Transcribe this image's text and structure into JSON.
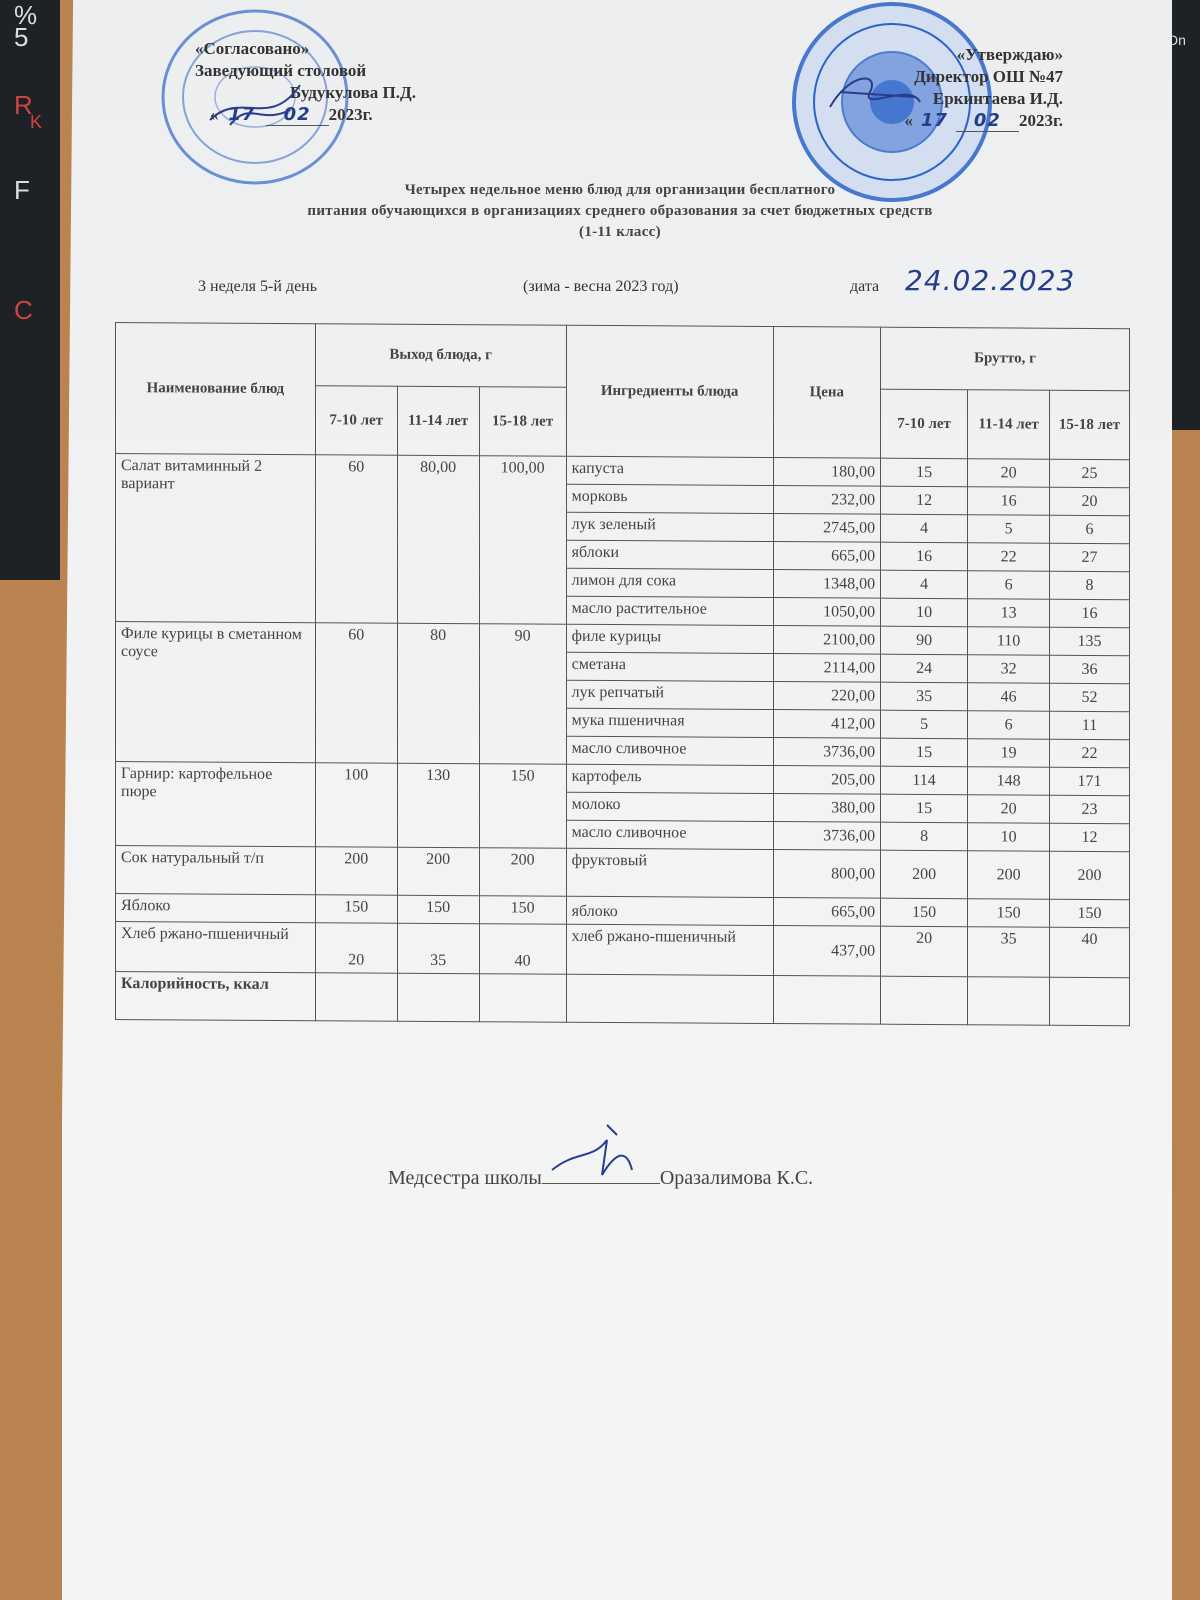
{
  "keyboard_keys": [
    "%",
    "5",
    "R",
    "K",
    "F",
    "C"
  ],
  "keyboard_right_key": "Dn",
  "approval_left": {
    "line1": "«Согласовано»",
    "line2": "Заведующий столовой",
    "line3": "Будукулова П.Д.",
    "date_prefix": "«",
    "day": "17",
    "month": "02",
    "year": "2023г."
  },
  "approval_right": {
    "line1": "«Утверждаю»",
    "line2": "Директор ОШ №47",
    "line3": "Еркинтаева И.Д.",
    "date_prefix": "«",
    "day": "17",
    "month": "02",
    "year": "2023г."
  },
  "stamp_left_text": "РЕСПУБЛИКА КАЗАХСТАН ГОРОД АЛМАТЫ · ИП БУДУКУЛОВА",
  "stamp_right_text": "АЛМАТЫ ҚАЛАСЫ · №47 ЖАЛПЫ БІЛІМ БЕРЕТІН МЕКТЕП",
  "stamp_color": "#2b63c9",
  "title": {
    "line1": "Четырех недельное меню блюд для организации бесплатного",
    "line2": "питания обучающихся в организациях среднего образования за счет бюджетных средств",
    "line3": "(1-11 класс)"
  },
  "meta": {
    "week_day": "3 неделя 5-й день",
    "season": "(зима - весна 2023 год)",
    "date_label": "дата",
    "date_value": "24.02.2023"
  },
  "table": {
    "headers": {
      "dish": "Наименование блюд",
      "yield": "Выход блюда, г",
      "ingredients": "Ингредиенты блюда",
      "price": "Цена",
      "brutto": "Брутто, г",
      "ages": [
        "7-10 лет",
        "11-14 лет",
        "15-18 лет"
      ]
    },
    "dishes": [
      {
        "name": "Салат витаминный 2 вариант",
        "yield": [
          "60",
          "80,00",
          "100,00"
        ],
        "ingredients": [
          {
            "name": "капуста",
            "price": "180,00",
            "brutto": [
              "15",
              "20",
              "25"
            ]
          },
          {
            "name": "морковь",
            "price": "232,00",
            "brutto": [
              "12",
              "16",
              "20"
            ]
          },
          {
            "name": "лук зеленый",
            "price": "2745,00",
            "brutto": [
              "4",
              "5",
              "6"
            ]
          },
          {
            "name": "яблоки",
            "price": "665,00",
            "brutto": [
              "16",
              "22",
              "27"
            ]
          },
          {
            "name": "лимон для сока",
            "price": "1348,00",
            "brutto": [
              "4",
              "6",
              "8"
            ]
          },
          {
            "name": "масло растительное",
            "price": "1050,00",
            "brutto": [
              "10",
              "13",
              "16"
            ]
          }
        ]
      },
      {
        "name": "Филе курицы в сметанном соусе",
        "yield": [
          "60",
          "80",
          "90"
        ],
        "ingredients": [
          {
            "name": "филе курицы",
            "price": "2100,00",
            "brutto": [
              "90",
              "110",
              "135"
            ]
          },
          {
            "name": "сметана",
            "price": "2114,00",
            "brutto": [
              "24",
              "32",
              "36"
            ]
          },
          {
            "name": "лук репчатый",
            "price": "220,00",
            "brutto": [
              "35",
              "46",
              "52"
            ]
          },
          {
            "name": "мука пшеничная",
            "price": "412,00",
            "brutto": [
              "5",
              "6",
              "11"
            ]
          },
          {
            "name": "масло сливочное",
            "price": "3736,00",
            "brutto": [
              "15",
              "19",
              "22"
            ]
          }
        ]
      },
      {
        "name": "Гарнир: картофельное пюре",
        "yield": [
          "100",
          "130",
          "150"
        ],
        "ingredients": [
          {
            "name": "картофель",
            "price": "205,00",
            "brutto": [
              "114",
              "148",
              "171"
            ]
          },
          {
            "name": "молоко",
            "price": "380,00",
            "brutto": [
              "15",
              "20",
              "23"
            ]
          },
          {
            "name": "масло сливочное",
            "price": "3736,00",
            "brutto": [
              "8",
              "10",
              "12"
            ]
          }
        ]
      },
      {
        "name": "Сок натуральный т/п",
        "yield": [
          "200",
          "200",
          "200"
        ],
        "ingredients": [
          {
            "name": "фруктовый",
            "price": "800,00",
            "brutto": [
              "200",
              "200",
              "200"
            ]
          }
        ]
      },
      {
        "name": "Яблоко",
        "yield": [
          "150",
          "150",
          "150"
        ],
        "ingredients": [
          {
            "name": "яблоко",
            "price": "665,00",
            "brutto": [
              "150",
              "150",
              "150"
            ]
          }
        ]
      },
      {
        "name": "Хлеб ржано-пшеничный",
        "yield": [
          "20",
          "35",
          "40"
        ],
        "ingredients": [
          {
            "name": "хлеб ржано-пшеничный",
            "price": "437,00",
            "brutto": [
              "20",
              "35",
              "40"
            ]
          }
        ]
      }
    ],
    "calories_label": "Калорийность, ккал"
  },
  "footer": {
    "label": "Медсестра школы",
    "name": "Оразалимова К.С."
  }
}
